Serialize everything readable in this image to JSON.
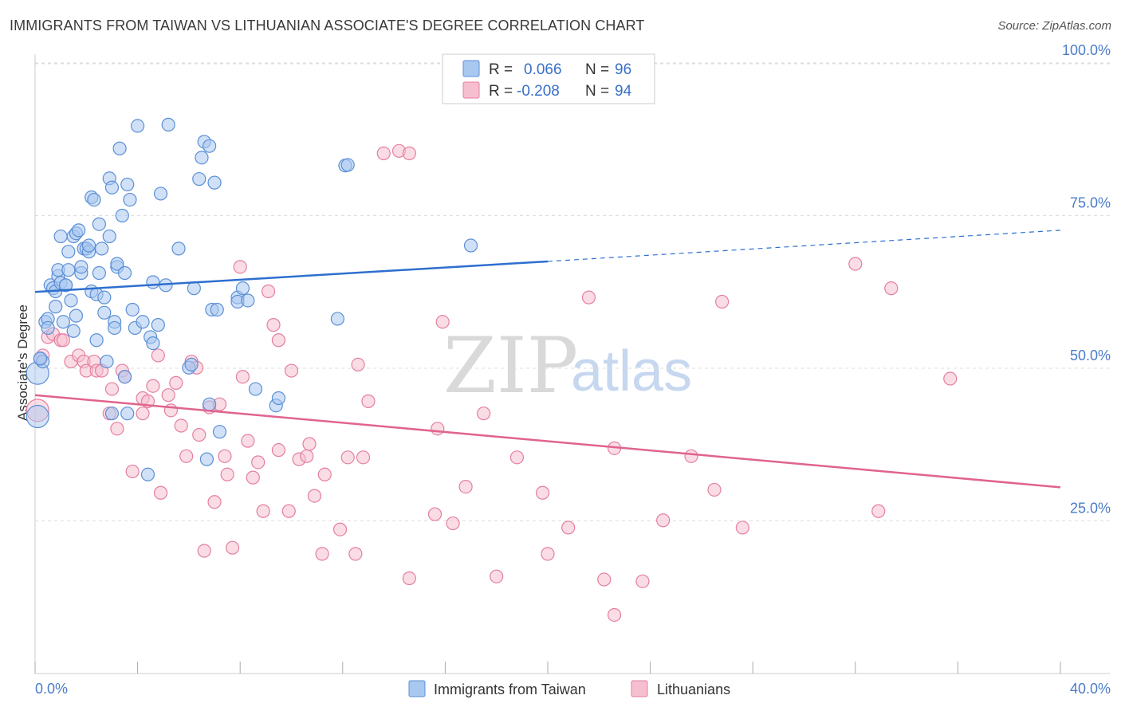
{
  "title": "IMMIGRANTS FROM TAIWAN VS LITHUANIAN ASSOCIATE'S DEGREE CORRELATION CHART",
  "source": "Source: ZipAtlas.com",
  "watermark": {
    "zip": "ZIP",
    "atlas": "atlas"
  },
  "colors": {
    "blue_fill": "#a9c8f0",
    "blue_stroke": "#5b8fd6",
    "blue_line": "#2e6fcf",
    "pink_fill": "#f6bfd0",
    "pink_stroke": "#e47fa0",
    "pink_line": "#e0648c",
    "grid": "#dddddd",
    "tick_text": "#4a7cc9"
  },
  "legend": {
    "rows": [
      {
        "r_label": "R =",
        "r_value": "0.066",
        "n_label": "N =",
        "n_value": "96",
        "color": "#a9c8f0"
      },
      {
        "r_label": "R =",
        "r_value": "-0.208",
        "n_label": "N =",
        "n_value": "94",
        "color": "#f6bfd0"
      }
    ]
  },
  "bottom_legend": [
    {
      "label": "Immigrants from Taiwan",
      "color": "#a9c8f0"
    },
    {
      "label": "Lithuanians",
      "color": "#f6bfd0"
    }
  ],
  "chart_data": {
    "type": "scatter",
    "title": "IMMIGRANTS FROM TAIWAN VS LITHUANIAN ASSOCIATE'S DEGREE CORRELATION CHART",
    "xlabel": "",
    "ylabel": "Associate's Degree",
    "xlim": [
      0,
      40
    ],
    "ylim": [
      2,
      106
    ],
    "x_ticks": [
      {
        "value": 0,
        "label": "0.0%"
      },
      {
        "value": 40,
        "label": "40.0%"
      }
    ],
    "y_ticks": [
      {
        "value": 25,
        "label": "25.0%"
      },
      {
        "value": 50,
        "label": "50.0%"
      },
      {
        "value": 75,
        "label": "75.0%"
      },
      {
        "value": 100,
        "label": "100.0%"
      }
    ],
    "grid": true,
    "legend_position": "top-center",
    "series": [
      {
        "name": "Immigrants from Taiwan",
        "r": 0.066,
        "n": 96,
        "trend": {
          "x0": 0,
          "y0": 62.5,
          "x1": 20,
          "y1": 67.5,
          "x_ext": 40,
          "y_ext": 72.6
        },
        "points": [
          [
            0.1,
            42.1
          ],
          [
            0.1,
            49.2
          ],
          [
            0.2,
            51.6
          ],
          [
            0.3,
            51.1
          ],
          [
            0.4,
            57.6
          ],
          [
            0.5,
            58.1
          ],
          [
            0.5,
            56.6
          ],
          [
            0.6,
            63.6
          ],
          [
            0.7,
            63.1
          ],
          [
            0.8,
            60.1
          ],
          [
            0.8,
            62.6
          ],
          [
            0.9,
            65.1
          ],
          [
            0.9,
            66.1
          ],
          [
            1.0,
            64.0
          ],
          [
            1.0,
            71.6
          ],
          [
            1.1,
            57.6
          ],
          [
            1.2,
            63.6
          ],
          [
            1.2,
            63.6
          ],
          [
            1.3,
            69.1
          ],
          [
            1.3,
            66.1
          ],
          [
            1.4,
            61.1
          ],
          [
            1.5,
            56.1
          ],
          [
            1.5,
            71.6
          ],
          [
            1.6,
            58.6
          ],
          [
            1.6,
            72.1
          ],
          [
            1.7,
            72.6
          ],
          [
            1.8,
            65.6
          ],
          [
            1.8,
            66.6
          ],
          [
            1.9,
            69.6
          ],
          [
            2.0,
            69.6
          ],
          [
            2.1,
            69.1
          ],
          [
            2.1,
            70.1
          ],
          [
            2.2,
            62.6
          ],
          [
            2.2,
            78.0
          ],
          [
            2.3,
            77.6
          ],
          [
            2.4,
            62.1
          ],
          [
            2.4,
            54.6
          ],
          [
            2.5,
            73.6
          ],
          [
            2.5,
            65.6
          ],
          [
            2.6,
            69.6
          ],
          [
            2.7,
            61.6
          ],
          [
            2.7,
            59.1
          ],
          [
            2.8,
            51.1
          ],
          [
            2.9,
            71.6
          ],
          [
            2.9,
            81.1
          ],
          [
            3.0,
            42.6
          ],
          [
            3.0,
            79.6
          ],
          [
            3.1,
            57.6
          ],
          [
            3.1,
            56.6
          ],
          [
            3.2,
            66.6
          ],
          [
            3.2,
            67.1
          ],
          [
            3.3,
            86.0
          ],
          [
            3.4,
            75.0
          ],
          [
            3.5,
            48.6
          ],
          [
            3.5,
            65.6
          ],
          [
            3.6,
            42.6
          ],
          [
            3.6,
            80.1
          ],
          [
            3.7,
            77.6
          ],
          [
            3.8,
            59.6
          ],
          [
            3.9,
            56.6
          ],
          [
            4.0,
            89.7
          ],
          [
            4.2,
            57.6
          ],
          [
            4.4,
            32.6
          ],
          [
            4.5,
            55.1
          ],
          [
            4.6,
            54.1
          ],
          [
            4.6,
            64.1
          ],
          [
            4.8,
            57.1
          ],
          [
            4.9,
            78.6
          ],
          [
            5.1,
            63.6
          ],
          [
            5.2,
            89.9
          ],
          [
            5.6,
            69.6
          ],
          [
            6.0,
            50.1
          ],
          [
            6.1,
            50.6
          ],
          [
            6.2,
            63.1
          ],
          [
            6.4,
            81.0
          ],
          [
            6.5,
            84.5
          ],
          [
            6.6,
            87.1
          ],
          [
            6.7,
            35.1
          ],
          [
            6.8,
            44.1
          ],
          [
            6.8,
            86.4
          ],
          [
            6.9,
            59.6
          ],
          [
            7.0,
            80.4
          ],
          [
            7.1,
            59.6
          ],
          [
            7.2,
            39.6
          ],
          [
            7.9,
            61.6
          ],
          [
            7.9,
            60.9
          ],
          [
            8.1,
            63.1
          ],
          [
            8.3,
            61.1
          ],
          [
            8.6,
            46.6
          ],
          [
            9.4,
            43.9
          ],
          [
            9.5,
            45.1
          ],
          [
            11.8,
            58.1
          ],
          [
            12.1,
            83.2
          ],
          [
            12.2,
            83.3
          ],
          [
            17.0,
            70.1
          ],
          [
            0.2,
            51.6
          ]
        ]
      },
      {
        "name": "Lithuanians",
        "r": -0.208,
        "n": 94,
        "trend": {
          "x0": 0,
          "y0": 45.6,
          "x1": 40,
          "y1": 30.5
        },
        "points": [
          [
            0.1,
            43.1
          ],
          [
            0.3,
            52.1
          ],
          [
            0.5,
            55.1
          ],
          [
            0.7,
            55.6
          ],
          [
            1.0,
            54.6
          ],
          [
            1.1,
            54.6
          ],
          [
            1.4,
            51.1
          ],
          [
            1.7,
            52.1
          ],
          [
            1.9,
            51.1
          ],
          [
            2.0,
            49.6
          ],
          [
            2.3,
            51.1
          ],
          [
            2.4,
            49.6
          ],
          [
            2.6,
            49.6
          ],
          [
            2.9,
            42.6
          ],
          [
            3.0,
            46.6
          ],
          [
            3.2,
            40.1
          ],
          [
            3.4,
            49.6
          ],
          [
            3.5,
            48.6
          ],
          [
            3.8,
            33.1
          ],
          [
            4.2,
            42.6
          ],
          [
            4.2,
            45.1
          ],
          [
            4.4,
            44.6
          ],
          [
            4.6,
            47.1
          ],
          [
            4.8,
            52.1
          ],
          [
            4.9,
            29.6
          ],
          [
            5.2,
            45.6
          ],
          [
            5.3,
            43.1
          ],
          [
            5.5,
            47.6
          ],
          [
            5.7,
            40.6
          ],
          [
            5.9,
            35.6
          ],
          [
            6.1,
            51.1
          ],
          [
            6.3,
            50.1
          ],
          [
            6.4,
            39.1
          ],
          [
            6.6,
            20.1
          ],
          [
            6.8,
            43.6
          ],
          [
            7.0,
            28.1
          ],
          [
            7.2,
            44.1
          ],
          [
            7.4,
            35.6
          ],
          [
            7.5,
            32.6
          ],
          [
            7.7,
            20.6
          ],
          [
            8.0,
            66.6
          ],
          [
            8.1,
            48.6
          ],
          [
            8.3,
            38.1
          ],
          [
            8.5,
            32.1
          ],
          [
            8.7,
            34.6
          ],
          [
            8.9,
            26.6
          ],
          [
            9.1,
            62.6
          ],
          [
            9.3,
            57.1
          ],
          [
            9.5,
            54.6
          ],
          [
            9.5,
            36.6
          ],
          [
            9.9,
            26.6
          ],
          [
            10.0,
            49.6
          ],
          [
            10.3,
            35.1
          ],
          [
            10.6,
            35.6
          ],
          [
            10.7,
            37.6
          ],
          [
            10.9,
            29.1
          ],
          [
            11.2,
            19.6
          ],
          [
            11.3,
            32.6
          ],
          [
            11.9,
            23.6
          ],
          [
            12.2,
            35.4
          ],
          [
            12.5,
            19.6
          ],
          [
            12.6,
            50.6
          ],
          [
            12.8,
            35.4
          ],
          [
            13.0,
            44.6
          ],
          [
            13.6,
            85.2
          ],
          [
            14.2,
            85.6
          ],
          [
            14.6,
            85.2
          ],
          [
            14.6,
            15.6
          ],
          [
            15.6,
            26.1
          ],
          [
            15.7,
            40.1
          ],
          [
            15.9,
            57.6
          ],
          [
            16.3,
            24.6
          ],
          [
            16.8,
            30.6
          ],
          [
            17.5,
            42.6
          ],
          [
            18.0,
            15.9
          ],
          [
            18.8,
            35.4
          ],
          [
            19.8,
            29.6
          ],
          [
            20.0,
            19.6
          ],
          [
            20.8,
            23.9
          ],
          [
            21.6,
            61.6
          ],
          [
            22.2,
            15.4
          ],
          [
            22.6,
            36.9
          ],
          [
            22.6,
            9.6
          ],
          [
            23.7,
            15.1
          ],
          [
            24.5,
            25.1
          ],
          [
            25.6,
            35.6
          ],
          [
            26.5,
            30.1
          ],
          [
            26.8,
            60.9
          ],
          [
            27.6,
            23.9
          ],
          [
            32.0,
            67.1
          ],
          [
            32.9,
            26.6
          ],
          [
            33.4,
            63.1
          ],
          [
            35.7,
            48.3
          ],
          [
            0.2,
            51.5
          ]
        ]
      }
    ]
  }
}
